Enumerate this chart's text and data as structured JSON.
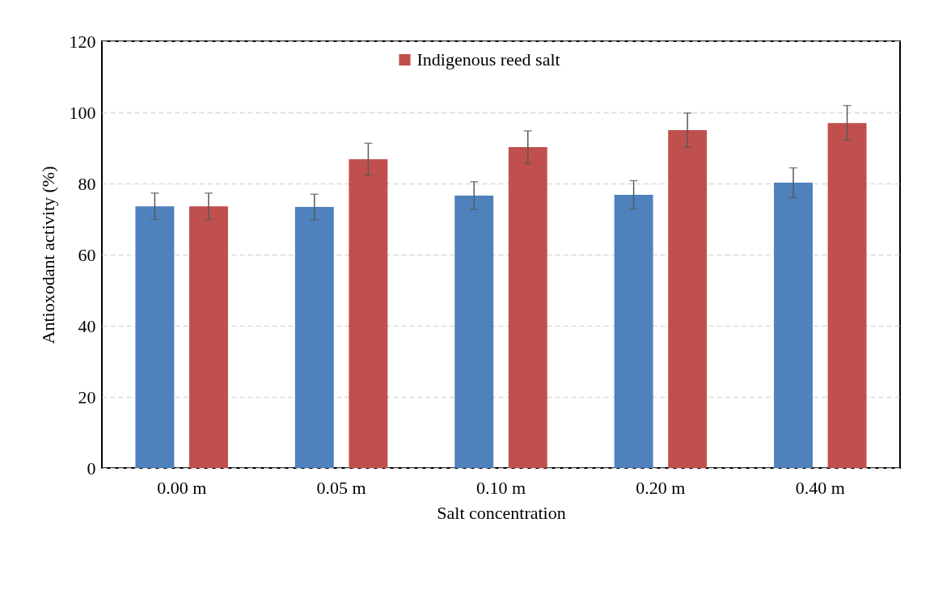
{
  "chart_data": {
    "type": "bar",
    "xlabel": "Salt concentration",
    "ylabel": "Antioxodant activity (%)",
    "categories": [
      "0.00 m",
      "0.05 m",
      "0.10 m",
      "0.20 m",
      "0.40 m"
    ],
    "series": [
      {
        "color": "#4f81bd",
        "values": [
          73.6,
          73.4,
          76.6,
          76.8,
          80.2
        ],
        "errors": [
          3.7,
          3.6,
          3.9,
          4.0,
          4.2
        ]
      },
      {
        "name": "Indigenous reed salt",
        "color": "#c0504d",
        "values": [
          73.6,
          86.8,
          90.2,
          95.0,
          97.0
        ],
        "errors": [
          3.7,
          4.5,
          4.6,
          4.8,
          4.9
        ]
      }
    ],
    "ylim": [
      0,
      120
    ],
    "yticks": [
      0,
      20,
      40,
      60,
      80,
      100,
      120
    ],
    "grid": "y",
    "legend": "top"
  }
}
